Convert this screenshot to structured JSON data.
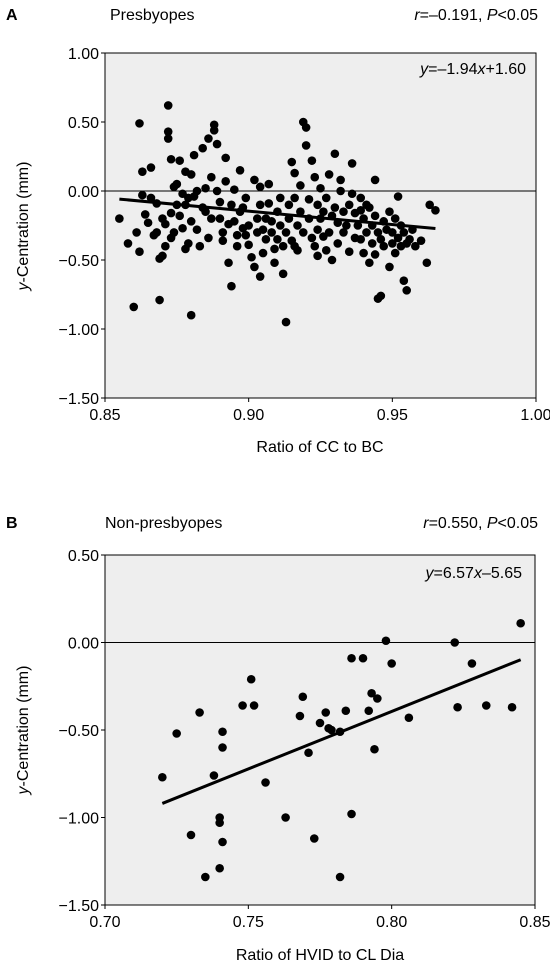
{
  "chart_data": [
    {
      "type": "scatter",
      "panel": "A",
      "title": "Presbyopes",
      "stats": {
        "r_prefix": "r",
        "r_value": "=–0.191, ",
        "p_prefix": "P",
        "p_value": "<0.05"
      },
      "equation": {
        "y": "y",
        "eq_mid": "=–1.94",
        "x": "x",
        "eq_end": "+1.60"
      },
      "xlabel": "Ratio of CC to BC",
      "ylabel_italic": "y",
      "ylabel_rest": "-Centration (mm)",
      "xlim": [
        0.85,
        1.0
      ],
      "ylim": [
        -1.5,
        1.0
      ],
      "xticks": [
        "0.85",
        "0.90",
        "0.95",
        "1.00"
      ],
      "yticks": [
        "1.00",
        "0.50",
        "0.00",
        "−0.50",
        "−1.00",
        "−1.50"
      ],
      "ytick_values": [
        1.0,
        0.5,
        0.0,
        -0.5,
        -1.0,
        -1.5
      ],
      "xtick_values": [
        0.85,
        0.9,
        0.95,
        1.0
      ],
      "regression": {
        "slope": -1.94,
        "intercept": 1.6,
        "x_range": [
          0.855,
          0.965
        ]
      },
      "zero_line": true,
      "grid": false,
      "background": "#eeeeee",
      "marker_color": "#000000",
      "points": [
        [
          0.855,
          -0.2
        ],
        [
          0.858,
          -0.38
        ],
        [
          0.86,
          -0.84
        ],
        [
          0.861,
          -0.3
        ],
        [
          0.862,
          -0.44
        ],
        [
          0.862,
          0.49
        ],
        [
          0.863,
          0.14
        ],
        [
          0.863,
          -0.03
        ],
        [
          0.864,
          -0.17
        ],
        [
          0.865,
          -0.23
        ],
        [
          0.866,
          -0.05
        ],
        [
          0.866,
          0.17
        ],
        [
          0.867,
          -0.32
        ],
        [
          0.868,
          -0.09
        ],
        [
          0.869,
          -0.49
        ],
        [
          0.869,
          -0.79
        ],
        [
          0.87,
          -0.47
        ],
        [
          0.87,
          -0.2
        ],
        [
          0.871,
          -0.4
        ],
        [
          0.871,
          -0.24
        ],
        [
          0.872,
          0.62
        ],
        [
          0.872,
          0.43
        ],
        [
          0.872,
          0.38
        ],
        [
          0.873,
          0.23
        ],
        [
          0.873,
          -0.16
        ],
        [
          0.873,
          -0.34
        ],
        [
          0.874,
          0.03
        ],
        [
          0.874,
          -0.3
        ],
        [
          0.875,
          0.05
        ],
        [
          0.875,
          -0.1
        ],
        [
          0.876,
          0.22
        ],
        [
          0.876,
          -0.18
        ],
        [
          0.877,
          -0.27
        ],
        [
          0.877,
          -0.02
        ],
        [
          0.878,
          0.14
        ],
        [
          0.878,
          -0.1
        ],
        [
          0.879,
          -0.05
        ],
        [
          0.879,
          -0.38
        ],
        [
          0.88,
          0.12
        ],
        [
          0.88,
          -0.22
        ],
        [
          0.88,
          -0.9
        ],
        [
          0.881,
          0.26
        ],
        [
          0.881,
          -0.04
        ],
        [
          0.882,
          0.0
        ],
        [
          0.882,
          -0.28
        ],
        [
          0.883,
          -0.4
        ],
        [
          0.884,
          0.31
        ],
        [
          0.884,
          -0.12
        ],
        [
          0.885,
          0.02
        ],
        [
          0.885,
          -0.15
        ],
        [
          0.886,
          -0.34
        ],
        [
          0.886,
          0.38
        ],
        [
          0.887,
          -0.2
        ],
        [
          0.887,
          0.1
        ],
        [
          0.888,
          0.44
        ],
        [
          0.888,
          0.48
        ],
        [
          0.889,
          0.34
        ],
        [
          0.889,
          0.0
        ],
        [
          0.89,
          -0.08
        ],
        [
          0.89,
          -0.2
        ],
        [
          0.891,
          -0.36
        ],
        [
          0.891,
          -0.3
        ],
        [
          0.892,
          0.24
        ],
        [
          0.892,
          0.07
        ],
        [
          0.893,
          -0.24
        ],
        [
          0.893,
          -0.52
        ],
        [
          0.894,
          -0.69
        ],
        [
          0.894,
          -0.1
        ],
        [
          0.895,
          -0.22
        ],
        [
          0.895,
          0.01
        ],
        [
          0.896,
          -0.32
        ],
        [
          0.896,
          -0.4
        ],
        [
          0.897,
          -0.15
        ],
        [
          0.897,
          0.15
        ],
        [
          0.898,
          -0.27
        ],
        [
          0.898,
          -0.12
        ],
        [
          0.899,
          -0.05
        ],
        [
          0.899,
          -0.32
        ],
        [
          0.9,
          -0.25
        ],
        [
          0.9,
          -0.39
        ],
        [
          0.901,
          -0.48
        ],
        [
          0.902,
          -0.55
        ],
        [
          0.902,
          0.08
        ],
        [
          0.903,
          -0.3
        ],
        [
          0.903,
          -0.2
        ],
        [
          0.904,
          -0.1
        ],
        [
          0.904,
          0.03
        ],
        [
          0.905,
          -0.28
        ],
        [
          0.905,
          -0.45
        ],
        [
          0.906,
          -0.35
        ],
        [
          0.906,
          -0.2
        ],
        [
          0.907,
          -0.09
        ],
        [
          0.907,
          0.05
        ],
        [
          0.908,
          -0.22
        ],
        [
          0.908,
          -0.3
        ],
        [
          0.909,
          -0.42
        ],
        [
          0.909,
          -0.52
        ],
        [
          0.91,
          -0.15
        ],
        [
          0.91,
          -0.35
        ],
        [
          0.911,
          -0.25
        ],
        [
          0.911,
          -0.05
        ],
        [
          0.912,
          -0.4
        ],
        [
          0.912,
          -0.6
        ],
        [
          0.913,
          -0.95
        ],
        [
          0.913,
          -0.3
        ],
        [
          0.914,
          -0.2
        ],
        [
          0.914,
          -0.1
        ],
        [
          0.915,
          0.21
        ],
        [
          0.915,
          -0.36
        ],
        [
          0.916,
          -0.05
        ],
        [
          0.916,
          0.13
        ],
        [
          0.917,
          -0.25
        ],
        [
          0.917,
          -0.43
        ],
        [
          0.918,
          -0.15
        ],
        [
          0.918,
          0.04
        ],
        [
          0.919,
          0.5
        ],
        [
          0.919,
          -0.3
        ],
        [
          0.92,
          0.33
        ],
        [
          0.92,
          0.46
        ],
        [
          0.921,
          -0.06
        ],
        [
          0.921,
          -0.2
        ],
        [
          0.922,
          0.22
        ],
        [
          0.922,
          -0.34
        ],
        [
          0.923,
          0.1
        ],
        [
          0.923,
          -0.4
        ],
        [
          0.924,
          -0.1
        ],
        [
          0.924,
          -0.28
        ],
        [
          0.925,
          -0.2
        ],
        [
          0.925,
          0.02
        ],
        [
          0.926,
          -0.15
        ],
        [
          0.926,
          -0.33
        ],
        [
          0.927,
          -0.43
        ],
        [
          0.927,
          -0.05
        ],
        [
          0.928,
          0.12
        ],
        [
          0.928,
          -0.3
        ],
        [
          0.929,
          -0.18
        ],
        [
          0.929,
          -0.5
        ],
        [
          0.93,
          0.27
        ],
        [
          0.93,
          -0.12
        ],
        [
          0.931,
          -0.23
        ],
        [
          0.931,
          -0.38
        ],
        [
          0.932,
          0.0
        ],
        [
          0.932,
          0.08
        ],
        [
          0.933,
          -0.15
        ],
        [
          0.933,
          -0.3
        ],
        [
          0.934,
          -0.25
        ],
        [
          0.935,
          -0.1
        ],
        [
          0.935,
          -0.44
        ],
        [
          0.936,
          0.2
        ],
        [
          0.936,
          -0.02
        ],
        [
          0.937,
          -0.16
        ],
        [
          0.937,
          -0.34
        ],
        [
          0.938,
          -0.25
        ],
        [
          0.939,
          -0.05
        ],
        [
          0.939,
          -0.35
        ],
        [
          0.94,
          -0.2
        ],
        [
          0.94,
          -0.45
        ],
        [
          0.941,
          -0.1
        ],
        [
          0.941,
          -0.3
        ],
        [
          0.942,
          -0.52
        ],
        [
          0.942,
          -0.12
        ],
        [
          0.943,
          -0.38
        ],
        [
          0.943,
          -0.25
        ],
        [
          0.944,
          -0.18
        ],
        [
          0.944,
          -0.46
        ],
        [
          0.945,
          -0.3
        ],
        [
          0.945,
          -0.78
        ],
        [
          0.946,
          -0.76
        ],
        [
          0.946,
          -0.35
        ],
        [
          0.947,
          -0.22
        ],
        [
          0.947,
          -0.4
        ],
        [
          0.948,
          -0.28
        ],
        [
          0.949,
          -0.15
        ],
        [
          0.949,
          -0.55
        ],
        [
          0.95,
          -0.38
        ],
        [
          0.95,
          -0.3
        ],
        [
          0.951,
          -0.2
        ],
        [
          0.951,
          -0.45
        ],
        [
          0.952,
          -0.34
        ],
        [
          0.953,
          -0.25
        ],
        [
          0.953,
          -0.4
        ],
        [
          0.954,
          -0.65
        ],
        [
          0.954,
          -0.3
        ],
        [
          0.955,
          -0.72
        ],
        [
          0.955,
          -0.38
        ],
        [
          0.956,
          -0.35
        ],
        [
          0.957,
          -0.28
        ],
        [
          0.958,
          -0.4
        ],
        [
          0.96,
          -0.36
        ],
        [
          0.962,
          -0.52
        ],
        [
          0.963,
          -0.1
        ],
        [
          0.965,
          -0.14
        ],
        [
          0.939,
          -0.14
        ],
        [
          0.952,
          -0.04
        ],
        [
          0.944,
          0.08
        ],
        [
          0.916,
          -0.4
        ],
        [
          0.904,
          -0.62
        ],
        [
          0.878,
          -0.42
        ],
        [
          0.868,
          -0.3
        ],
        [
          0.924,
          -0.47
        ]
      ]
    },
    {
      "type": "scatter",
      "panel": "B",
      "title": "Non-presbyopes",
      "stats": {
        "r_prefix": "r",
        "r_value": "=0.550, ",
        "p_prefix": "P",
        "p_value": "<0.05"
      },
      "equation": {
        "y": "y",
        "eq_mid": "=6.57",
        "x": "x",
        "eq_end": "–5.65"
      },
      "xlabel": "Ratio of HVID to CL Dia",
      "ylabel_italic": "y",
      "ylabel_rest": "-Centration (mm)",
      "xlim": [
        0.7,
        0.85
      ],
      "ylim": [
        -1.5,
        0.5
      ],
      "xticks": [
        "0.70",
        "0.75",
        "0.80",
        "0.85"
      ],
      "yticks": [
        "0.50",
        "0.00",
        "−0.50",
        "−1.00",
        "−1.50"
      ],
      "ytick_values": [
        0.5,
        0.0,
        -0.5,
        -1.0,
        -1.5
      ],
      "xtick_values": [
        0.7,
        0.75,
        0.8,
        0.85
      ],
      "regression": {
        "slope": 6.57,
        "intercept": -5.65,
        "x_range": [
          0.72,
          0.845
        ]
      },
      "zero_line": true,
      "grid": false,
      "background": "#eeeeee",
      "marker_color": "#000000",
      "points": [
        [
          0.72,
          -0.77
        ],
        [
          0.725,
          -0.52
        ],
        [
          0.73,
          -1.1
        ],
        [
          0.733,
          -0.4
        ],
        [
          0.735,
          -1.34
        ],
        [
          0.738,
          -0.76
        ],
        [
          0.74,
          -1.0
        ],
        [
          0.74,
          -1.03
        ],
        [
          0.741,
          -0.51
        ],
        [
          0.741,
          -0.6
        ],
        [
          0.741,
          -1.14
        ],
        [
          0.74,
          -1.29
        ],
        [
          0.748,
          -0.36
        ],
        [
          0.751,
          -0.21
        ],
        [
          0.752,
          -0.36
        ],
        [
          0.756,
          -0.8
        ],
        [
          0.763,
          -1.0
        ],
        [
          0.768,
          -0.42
        ],
        [
          0.769,
          -0.31
        ],
        [
          0.771,
          -0.63
        ],
        [
          0.773,
          -1.12
        ],
        [
          0.775,
          -0.46
        ],
        [
          0.777,
          -0.4
        ],
        [
          0.778,
          -0.49
        ],
        [
          0.779,
          -0.5
        ],
        [
          0.782,
          -0.51
        ],
        [
          0.782,
          -1.34
        ],
        [
          0.784,
          -0.39
        ],
        [
          0.786,
          -0.09
        ],
        [
          0.786,
          -0.98
        ],
        [
          0.79,
          -0.09
        ],
        [
          0.792,
          -0.39
        ],
        [
          0.793,
          -0.29
        ],
        [
          0.794,
          -0.61
        ],
        [
          0.795,
          -0.32
        ],
        [
          0.798,
          0.01
        ],
        [
          0.8,
          -0.12
        ],
        [
          0.806,
          -0.43
        ],
        [
          0.822,
          0.0
        ],
        [
          0.823,
          -0.37
        ],
        [
          0.828,
          -0.12
        ],
        [
          0.833,
          -0.36
        ],
        [
          0.842,
          -0.37
        ],
        [
          0.845,
          0.11
        ]
      ]
    }
  ]
}
